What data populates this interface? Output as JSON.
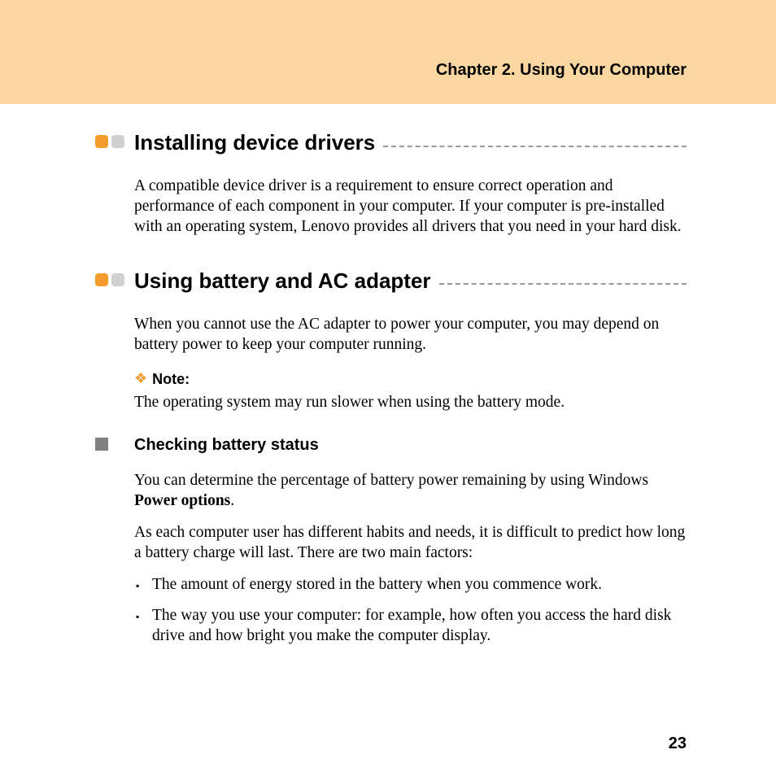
{
  "header": {
    "chapter_title": "Chapter 2. Using Your Computer"
  },
  "sections": [
    {
      "title": "Installing device drivers",
      "paragraphs": [
        "A compatible device driver is a requirement to ensure correct operation and performance of each component in your computer. If your computer is pre-installed with an operating system, Lenovo provides all drivers that you need in your hard disk."
      ]
    },
    {
      "title": "Using battery and AC adapter",
      "paragraphs": [
        "When you cannot use the AC adapter to power your computer, you may depend on battery power to keep your computer running."
      ],
      "note": {
        "label": "Note:",
        "text": "The operating system may run slower when using the battery mode."
      },
      "subsection": {
        "title": "Checking battery status",
        "para1_pre": "You can determine the percentage of battery power remaining by using Windows ",
        "para1_bold": "Power options",
        "para1_post": ".",
        "para2": "As each computer user has different habits and needs, it is difficult to predict how long a battery charge will last. There are two main factors:",
        "bullets": [
          "The amount of energy stored in the battery when you commence work.",
          "The way you use your computer: for example, how often you access the hard disk drive and how bright you make the computer display."
        ]
      }
    }
  ],
  "page_number": "23",
  "colors": {
    "header_bg": "#fad7a0",
    "accent_orange": "#f39c2d",
    "cap_grey": "#d0d0d0",
    "sub_square": "#808080",
    "rule": "#999999"
  }
}
